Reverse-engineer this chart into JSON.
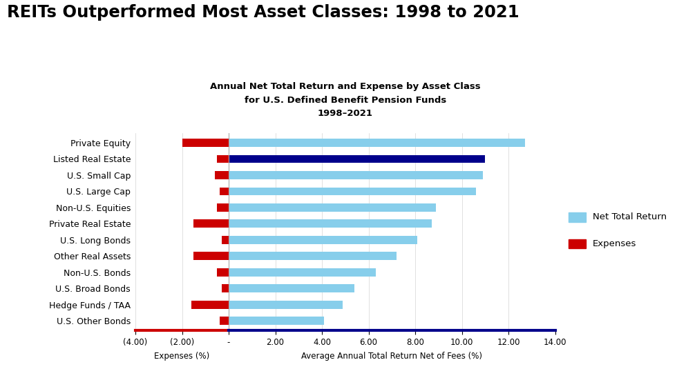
{
  "title": "REITs Outperformed Most Asset Classes: 1998 to 2021",
  "subtitle_line1": "Annual Net Total Return and Expense by Asset Class",
  "subtitle_line2": "for U.S. Defined Benefit Pension Funds",
  "subtitle_line3": "1998–2021",
  "categories": [
    "U.S. Other Bonds",
    "Hedge Funds / TAA",
    "U.S. Broad Bonds",
    "Non-U.S. Bonds",
    "Other Real Assets",
    "U.S. Long Bonds",
    "Private Real Estate",
    "Non-U.S. Equities",
    "U.S. Large Cap",
    "U.S. Small Cap",
    "Listed Real Estate",
    "Private Equity"
  ],
  "net_returns": [
    4.1,
    4.9,
    5.4,
    6.3,
    7.2,
    8.1,
    8.7,
    8.9,
    10.6,
    10.9,
    11.0,
    12.7
  ],
  "expenses": [
    -0.4,
    -1.6,
    -0.3,
    -0.5,
    -1.5,
    -0.3,
    -1.5,
    -0.5,
    -0.4,
    -0.6,
    -0.5,
    -2.0
  ],
  "return_color_default": "#87CEEB",
  "return_color_highlight": "#00008B",
  "highlight_index": 10,
  "expense_color": "#CC0000",
  "bg_color": "#FFFFFF",
  "xlabel_left": "Expenses (%)",
  "xlabel_right": "Average Annual Total Return Net of Fees (%)",
  "xlim_left": -4.0,
  "xlim_right": 14.0,
  "xticks": [
    -4.0,
    -2.0,
    0.0,
    2.0,
    4.0,
    6.0,
    8.0,
    10.0,
    12.0,
    14.0
  ],
  "xtick_labels": [
    "(4.00)",
    "(2.00)",
    "-",
    "2.00",
    "4.00",
    "6.00",
    "8.00",
    "10.00",
    "12.00",
    "14.00"
  ],
  "legend_label_return": "Net Total Return",
  "legend_label_expense": "Expenses"
}
